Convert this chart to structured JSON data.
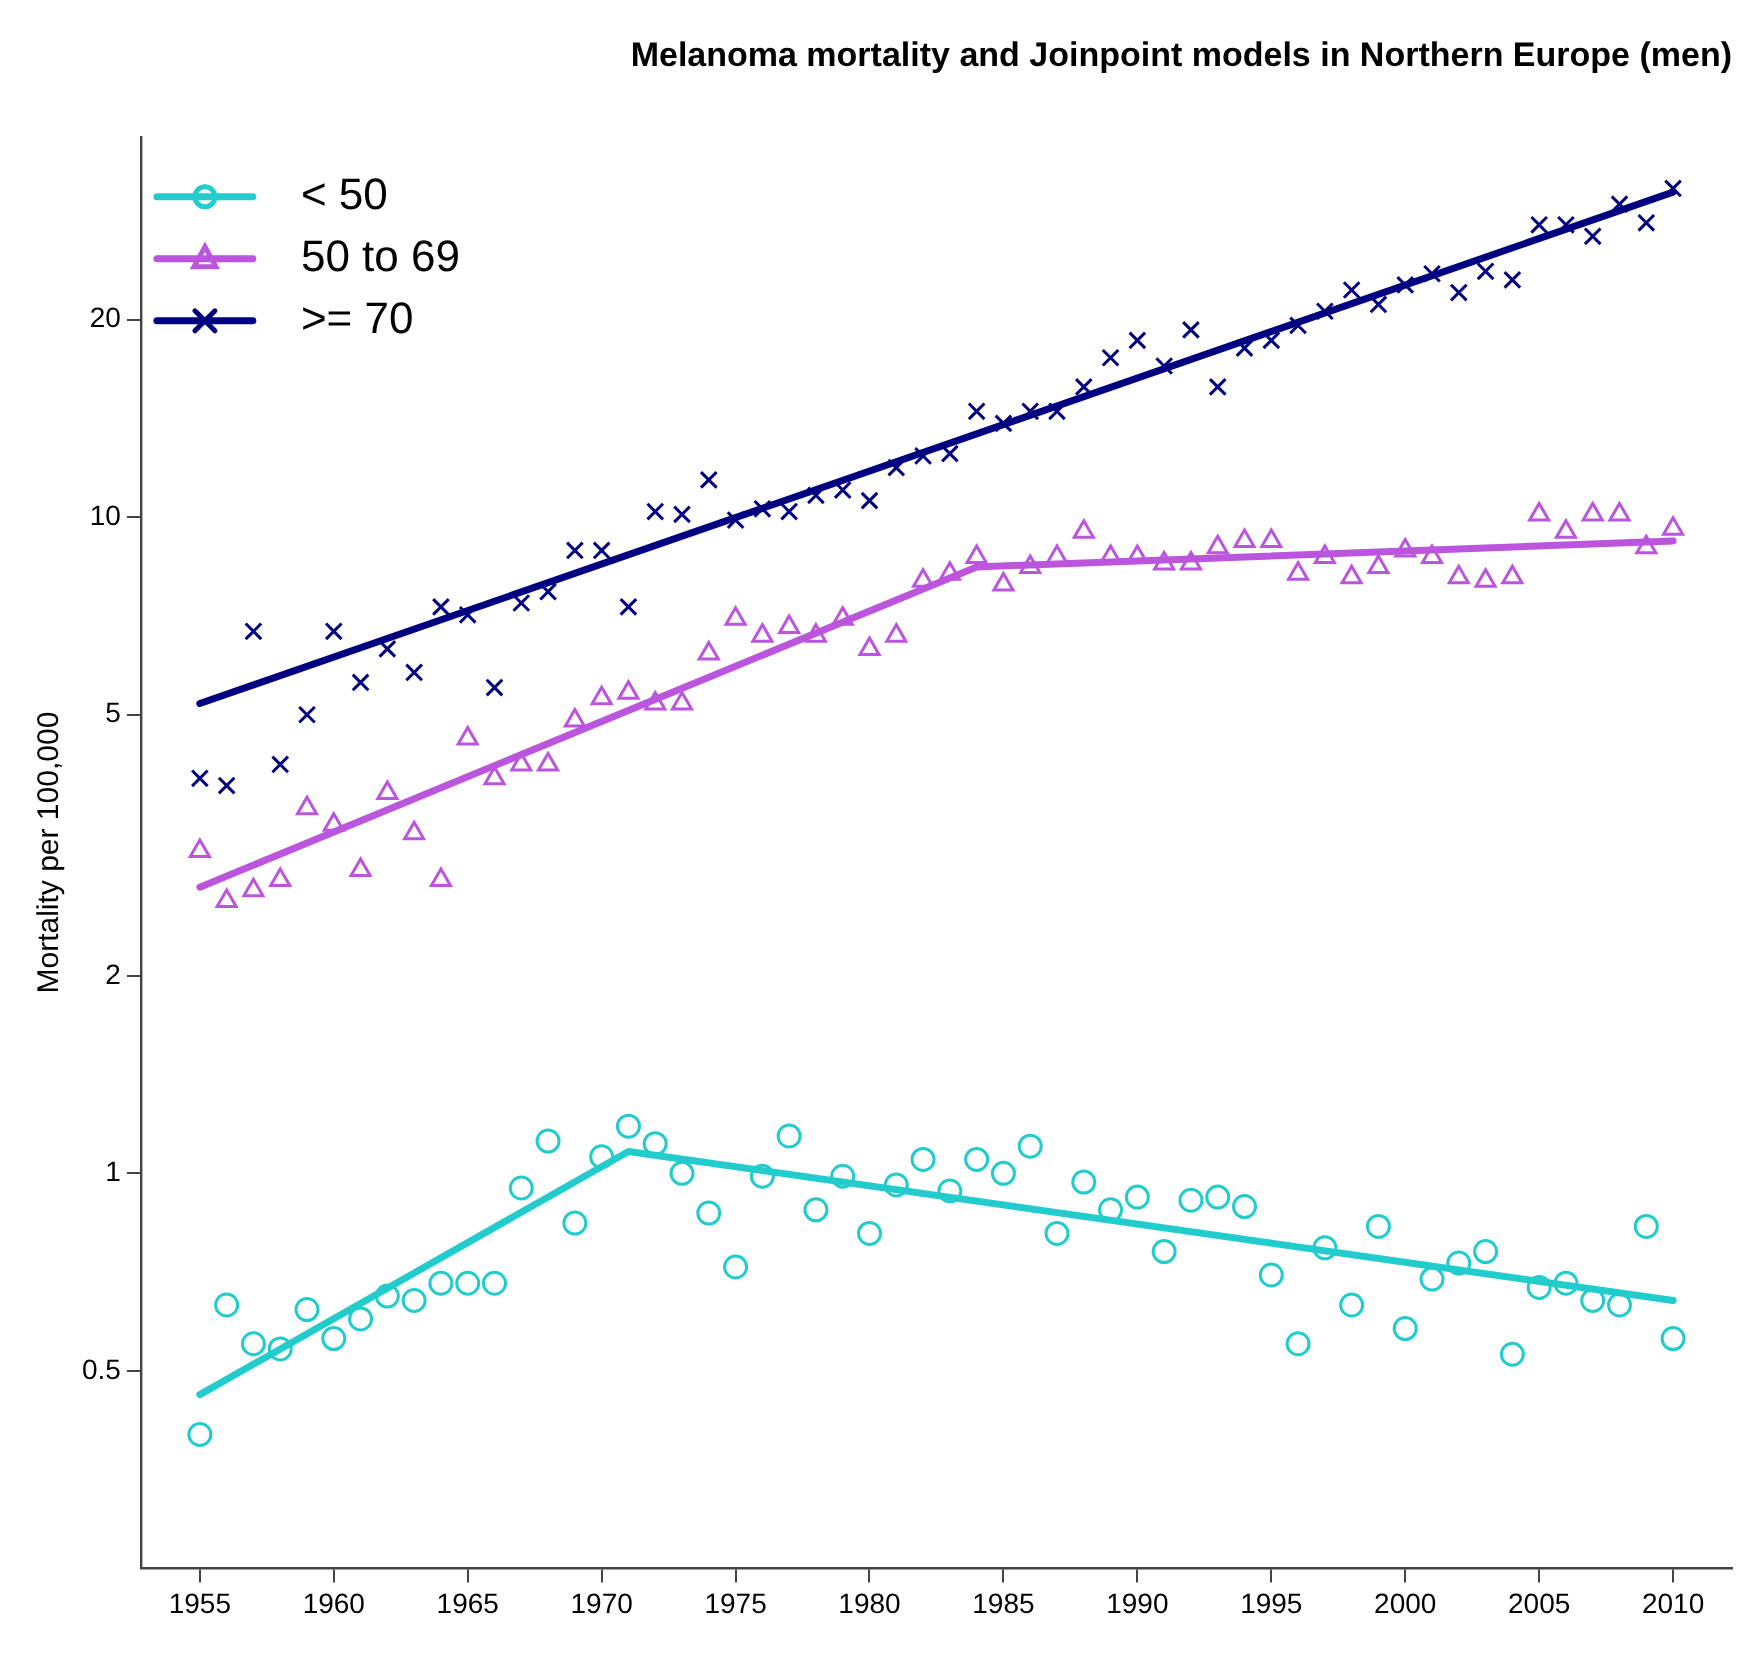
{
  "chart_data": {
    "type": "scatter",
    "title": "Melanoma mortality and Joinpoint models in Northern Europe (men)",
    "ylabel": "Mortality per 100,000",
    "x": [
      1955,
      1956,
      1957,
      1958,
      1959,
      1960,
      1961,
      1962,
      1963,
      1964,
      1965,
      1966,
      1967,
      1968,
      1969,
      1970,
      1971,
      1972,
      1973,
      1974,
      1975,
      1976,
      1977,
      1978,
      1979,
      1980,
      1981,
      1982,
      1983,
      1984,
      1985,
      1986,
      1987,
      1988,
      1989,
      1990,
      1991,
      1992,
      1993,
      1994,
      1995,
      1996,
      1997,
      1998,
      1999,
      2000,
      2001,
      2002,
      2003,
      2004,
      2005,
      2006,
      2007,
      2008,
      2009,
      2010
    ],
    "series": [
      {
        "name": "< 50",
        "color": "#22cccc",
        "marker": "circle",
        "values": [
          0.4,
          0.63,
          0.55,
          0.54,
          0.62,
          0.56,
          0.6,
          0.65,
          0.64,
          0.68,
          0.68,
          0.68,
          0.95,
          1.12,
          0.84,
          1.06,
          1.18,
          1.11,
          1.0,
          0.87,
          0.72,
          0.99,
          1.14,
          0.88,
          0.99,
          0.81,
          0.96,
          1.05,
          0.94,
          1.05,
          1.0,
          1.1,
          0.81,
          0.97,
          0.88,
          0.92,
          0.76,
          0.91,
          0.92,
          0.89,
          0.7,
          0.55,
          0.77,
          0.63,
          0.83,
          0.58,
          0.69,
          0.73,
          0.76,
          0.53,
          0.67,
          0.68,
          0.64,
          0.63,
          0.83,
          0.56
        ]
      },
      {
        "name": "50 to 69",
        "color": "#bb55dd",
        "marker": "triangle",
        "values": [
          3.1,
          2.6,
          2.7,
          2.8,
          3.6,
          3.4,
          2.9,
          3.8,
          3.3,
          2.8,
          4.6,
          4.0,
          4.2,
          4.2,
          4.9,
          5.3,
          5.4,
          5.2,
          5.2,
          6.2,
          7.0,
          6.6,
          6.8,
          6.6,
          7.0,
          6.3,
          6.6,
          8.0,
          8.2,
          8.7,
          7.9,
          8.4,
          8.7,
          9.5,
          8.7,
          8.7,
          8.5,
          8.5,
          9.0,
          9.2,
          9.2,
          8.2,
          8.7,
          8.1,
          8.4,
          8.9,
          8.7,
          8.1,
          8.0,
          8.1,
          10.1,
          9.5,
          10.1,
          10.1,
          9.0,
          9.6
        ]
      },
      {
        "name": ">= 70",
        "color": "#000080",
        "marker": "cross",
        "values": [
          4.0,
          3.9,
          6.7,
          4.2,
          5.0,
          6.7,
          5.6,
          6.3,
          5.8,
          7.3,
          7.1,
          5.5,
          7.4,
          7.7,
          8.9,
          8.9,
          7.3,
          10.2,
          10.1,
          11.4,
          9.9,
          10.3,
          10.2,
          10.8,
          11.0,
          10.6,
          11.9,
          12.4,
          12.5,
          14.5,
          13.9,
          14.5,
          14.5,
          15.8,
          17.5,
          18.6,
          17.0,
          19.3,
          15.8,
          18.1,
          18.6,
          19.6,
          20.6,
          22.2,
          21.1,
          22.6,
          23.5,
          22.0,
          23.7,
          23.0,
          27.9,
          27.9,
          26.8,
          30.0,
          28.1,
          31.7
        ]
      },
      {
        "type": "line",
        "color": "#22cccc",
        "x": [
          1955,
          1971,
          2010
        ],
        "values": [
          0.46,
          1.08,
          0.64
        ]
      },
      {
        "type": "line",
        "color": "#bb55dd",
        "x": [
          1955,
          1984,
          2010
        ],
        "values": [
          2.73,
          8.4,
          9.2
        ]
      },
      {
        "type": "line",
        "color": "#000080",
        "x": [
          1955,
          2010
        ],
        "values": [
          5.2,
          31.3
        ]
      }
    ],
    "log": "y",
    "xlim": [
      1952.8,
      2012.2
    ],
    "ylim": [
      0.25,
      38
    ],
    "xticks": [
      1955,
      1960,
      1965,
      1970,
      1975,
      1980,
      1985,
      1990,
      1995,
      2000,
      2005,
      2010
    ],
    "yticks": [
      0.5,
      1,
      2,
      5,
      10,
      20
    ],
    "legend": "top left",
    "grid": false
  }
}
